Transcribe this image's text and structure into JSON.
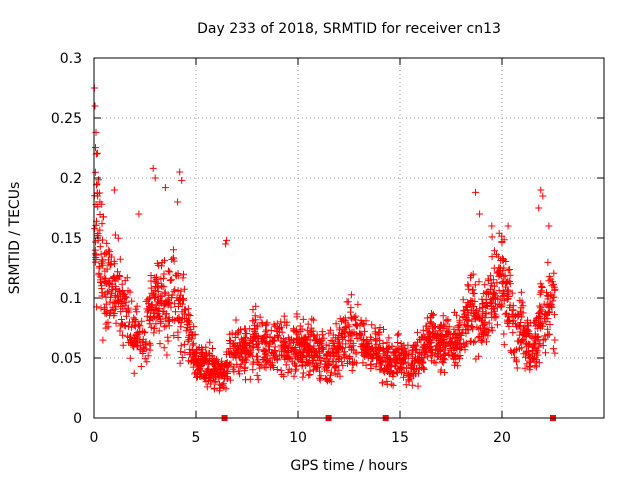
{
  "chart_data": {
    "type": "scatter",
    "title": "Day 233 of 2018, SRMTID for receiver cn13",
    "xlabel": "GPS time / hours",
    "ylabel": "SRMTID / TECUs",
    "xlim": [
      0,
      25
    ],
    "ylim": [
      0,
      0.3
    ],
    "grid": true,
    "marker": "+",
    "series_color": "#ff0000",
    "x_ticks": [
      {
        "value": 0,
        "label": "0"
      },
      {
        "value": 5,
        "label": "5"
      },
      {
        "value": 10,
        "label": "10"
      },
      {
        "value": 15,
        "label": "15"
      },
      {
        "value": 20,
        "label": "20"
      }
    ],
    "y_ticks": [
      {
        "value": 0,
        "label": "0"
      },
      {
        "value": 0.05,
        "label": "0.05"
      },
      {
        "value": 0.1,
        "label": "0.1"
      },
      {
        "value": 0.15,
        "label": "0.15"
      },
      {
        "value": 0.2,
        "label": "0.2"
      },
      {
        "value": 0.25,
        "label": "0.25"
      },
      {
        "value": 0.3,
        "label": "0.3"
      }
    ],
    "baseline_markers_x": [
      6.4,
      11.5,
      14.3,
      22.5
    ],
    "envelope": [
      [
        0.0,
        0.13
      ],
      [
        0.1,
        0.17
      ],
      [
        0.3,
        0.14
      ],
      [
        0.6,
        0.1
      ],
      [
        1.0,
        0.11
      ],
      [
        1.5,
        0.09
      ],
      [
        2.0,
        0.07
      ],
      [
        2.5,
        0.07
      ],
      [
        3.0,
        0.1
      ],
      [
        3.5,
        0.09
      ],
      [
        4.0,
        0.1
      ],
      [
        4.5,
        0.08
      ],
      [
        5.0,
        0.05
      ],
      [
        5.5,
        0.045
      ],
      [
        6.0,
        0.04
      ],
      [
        6.4,
        0.035
      ],
      [
        6.8,
        0.055
      ],
      [
        7.5,
        0.06
      ],
      [
        8.0,
        0.065
      ],
      [
        9.0,
        0.06
      ],
      [
        10.0,
        0.06
      ],
      [
        11.0,
        0.055
      ],
      [
        11.5,
        0.05
      ],
      [
        12.0,
        0.06
      ],
      [
        12.5,
        0.07
      ],
      [
        13.0,
        0.065
      ],
      [
        13.5,
        0.06
      ],
      [
        14.0,
        0.055
      ],
      [
        14.5,
        0.045
      ],
      [
        15.0,
        0.05
      ],
      [
        15.5,
        0.045
      ],
      [
        16.0,
        0.05
      ],
      [
        16.5,
        0.065
      ],
      [
        17.0,
        0.06
      ],
      [
        17.5,
        0.065
      ],
      [
        18.0,
        0.07
      ],
      [
        18.5,
        0.09
      ],
      [
        19.0,
        0.08
      ],
      [
        19.5,
        0.1
      ],
      [
        20.0,
        0.12
      ],
      [
        20.5,
        0.08
      ],
      [
        21.0,
        0.075
      ],
      [
        21.5,
        0.05
      ],
      [
        22.0,
        0.09
      ],
      [
        22.5,
        0.09
      ]
    ],
    "x_range_points": [
      0.0,
      22.6
    ],
    "point_count": 2200,
    "special_points": [
      {
        "x": 0.02,
        "y": 0.275
      },
      {
        "x": 0.05,
        "y": 0.26
      },
      {
        "x": 0.1,
        "y": 0.238
      },
      {
        "x": 0.12,
        "y": 0.22
      },
      {
        "x": 0.15,
        "y": 0.195
      },
      {
        "x": 0.18,
        "y": 0.185
      },
      {
        "x": 2.9,
        "y": 0.208
      },
      {
        "x": 3.0,
        "y": 0.2
      },
      {
        "x": 3.5,
        "y": 0.192
      },
      {
        "x": 4.2,
        "y": 0.205
      },
      {
        "x": 4.3,
        "y": 0.198
      },
      {
        "x": 4.1,
        "y": 0.18
      },
      {
        "x": 1.0,
        "y": 0.19
      },
      {
        "x": 18.7,
        "y": 0.188
      },
      {
        "x": 18.9,
        "y": 0.17
      },
      {
        "x": 21.9,
        "y": 0.19
      },
      {
        "x": 22.0,
        "y": 0.185
      },
      {
        "x": 21.8,
        "y": 0.175
      },
      {
        "x": 6.5,
        "y": 0.148
      },
      {
        "x": 6.45,
        "y": 0.145
      },
      {
        "x": 20.3,
        "y": 0.16
      },
      {
        "x": 19.5,
        "y": 0.16
      },
      {
        "x": 22.3,
        "y": 0.16
      },
      {
        "x": 2.2,
        "y": 0.17
      }
    ]
  }
}
